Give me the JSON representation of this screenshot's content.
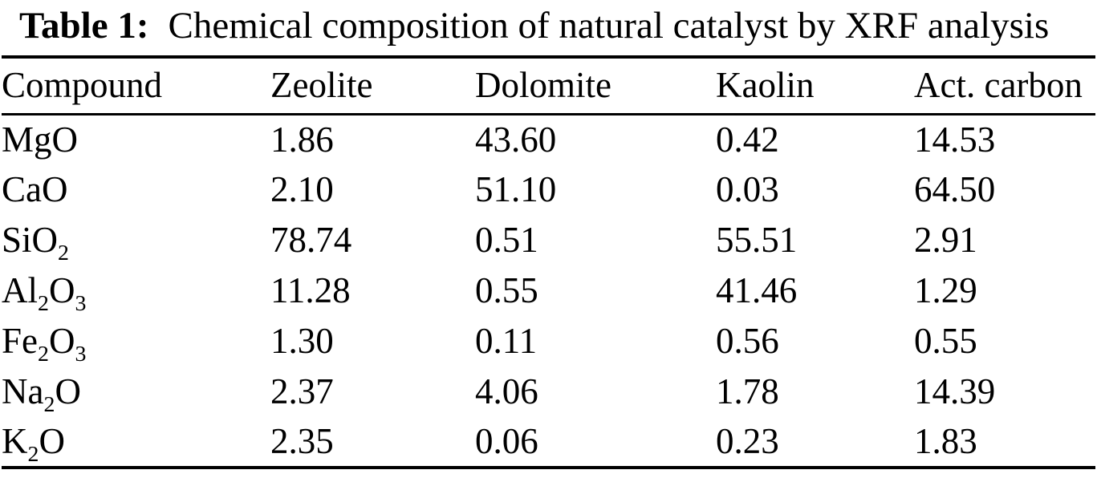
{
  "table": {
    "caption_label": "Table 1:",
    "caption_text": "Chemical composition of natural catalyst by XRF analysis",
    "columns": [
      "Compound",
      "Zeolite",
      "Dolomite",
      "Kaolin",
      "Act. carbon"
    ],
    "rows": [
      {
        "compound": "MgO",
        "values": [
          "1.86",
          "43.60",
          "0.42",
          "14.53"
        ]
      },
      {
        "compound": "CaO",
        "values": [
          "2.10",
          "51.10",
          "0.03",
          "64.50"
        ]
      },
      {
        "compound": "SiO2",
        "values": [
          "78.74",
          "0.51",
          "55.51",
          "2.91"
        ]
      },
      {
        "compound": "Al2O3",
        "values": [
          "11.28",
          "0.55",
          "41.46",
          "1.29"
        ]
      },
      {
        "compound": "Fe2O3",
        "values": [
          "1.30",
          "0.11",
          "0.56",
          "0.55"
        ]
      },
      {
        "compound": "Na2O",
        "values": [
          "2.37",
          "4.06",
          "1.78",
          "14.39"
        ]
      },
      {
        "compound": "K2O",
        "values": [
          "2.35",
          "0.06",
          "0.23",
          "1.83"
        ]
      }
    ]
  }
}
